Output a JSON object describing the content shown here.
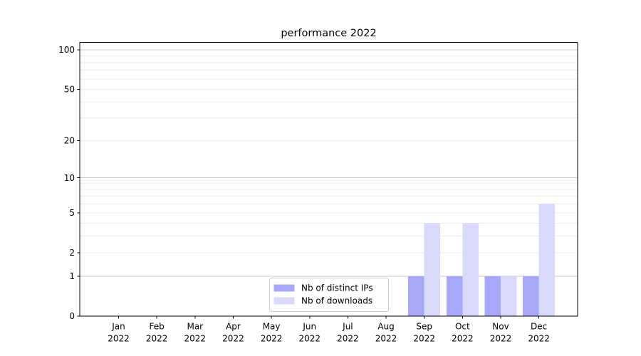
{
  "figure": {
    "background": "#ffffff"
  },
  "chart_data": {
    "type": "bar",
    "title": "performance 2022",
    "categories": [
      "Jan",
      "Feb",
      "Mar",
      "Apr",
      "May",
      "Jun",
      "Jul",
      "Aug",
      "Sep",
      "Oct",
      "Nov",
      "Dec"
    ],
    "x_year_line": "2022",
    "series": [
      {
        "name": "Nb of distinct IPs",
        "color": "#a8a8fb",
        "values": [
          0,
          0,
          0,
          0,
          0,
          0,
          0,
          0,
          1,
          1,
          1,
          1
        ]
      },
      {
        "name": "Nb of downloads",
        "color": "#d9d9fb",
        "values": [
          0,
          0,
          0,
          0,
          0,
          0,
          0,
          0,
          4,
          4,
          1,
          6
        ]
      }
    ],
    "yaxis": {
      "scale": "log1p",
      "ticks": [
        {
          "value": 0,
          "label": "0"
        },
        {
          "value": 1,
          "label": "1"
        },
        {
          "value": 2,
          "label": "2"
        },
        {
          "value": 5,
          "label": "5"
        },
        {
          "value": 10,
          "label": "10"
        },
        {
          "value": 20,
          "label": "20"
        },
        {
          "value": 50,
          "label": "50"
        },
        {
          "value": 100,
          "label": "100"
        }
      ],
      "major_gridlines": [
        1,
        10,
        100
      ],
      "minor_gridlines": [
        2,
        3,
        4,
        5,
        6,
        7,
        8,
        9,
        20,
        30,
        40,
        50,
        60,
        70,
        80,
        90
      ],
      "max_value": 114,
      "min_value": 0
    },
    "legend": {
      "position": "lower center",
      "entries": [
        "Nb of distinct IPs",
        "Nb of downloads"
      ]
    },
    "grid": "horizontal-only",
    "colors": {
      "spine": "#000000",
      "grid_major": "#c8c8c8",
      "grid_minor": "#ececec",
      "legend_border": "#cccccc",
      "legend_fill": "#ffffff",
      "text": "#000000"
    }
  }
}
